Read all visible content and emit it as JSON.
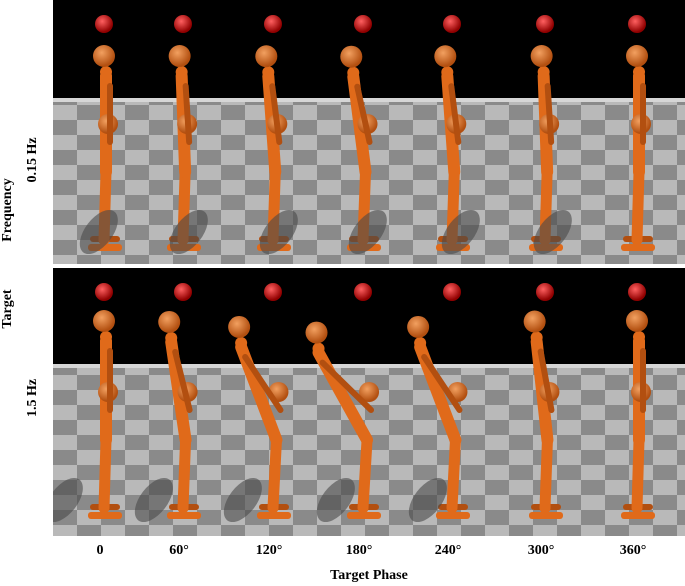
{
  "y_axis_label_top": "Frequency",
  "y_axis_label_bottom": "Target",
  "rows": [
    {
      "label": "0.15 Hz",
      "bend_degrees": [
        0,
        2,
        4,
        7,
        4,
        2,
        0
      ]
    },
    {
      "label": "1.5 Hz",
      "bend_degrees": [
        0,
        8,
        20,
        28,
        20,
        6,
        0
      ]
    }
  ],
  "columns": [
    "0",
    "60°",
    "120°",
    "180°",
    "240°",
    "300°",
    "360°"
  ],
  "x_axis_label": "Target Phase",
  "colors": {
    "sky": "#000000",
    "floor_light": "#b9b9b9",
    "floor_dark": "#8a8a8a",
    "horizon": "#d6d6d6",
    "body": "#e06a1a",
    "body_dark": "#b24f10",
    "head_target": "#d01010"
  }
}
